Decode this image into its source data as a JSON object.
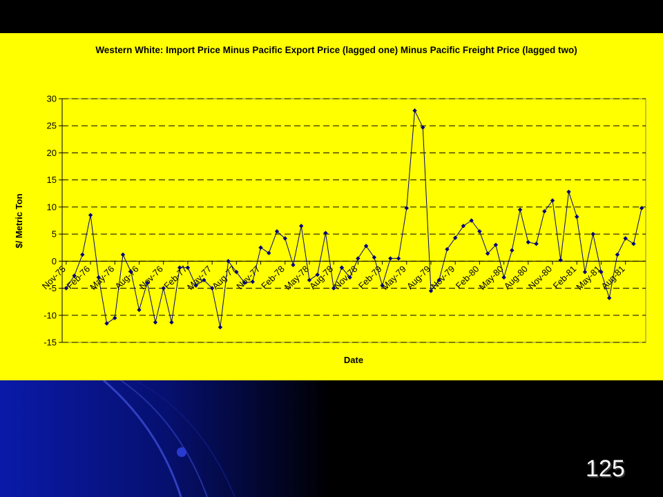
{
  "chart_data": {
    "type": "line",
    "title": "Western White: Import Price Minus Pacific Export Price (lagged one) Minus Pacific Freight Price (lagged two)",
    "x_label": "Date",
    "y_label": "$/ Metric Ton",
    "categories": [
      "Nov-75",
      null,
      null,
      "Feb-76",
      null,
      null,
      "May-76",
      null,
      null,
      "Aug-76",
      null,
      null,
      "Nov-76",
      null,
      null,
      "Feb-77",
      null,
      null,
      "May-77",
      null,
      null,
      "Aug-77",
      null,
      null,
      "Nov-77",
      null,
      null,
      "Feb-78",
      null,
      null,
      "May-78",
      null,
      null,
      "Aug-78",
      null,
      null,
      "Nov-78",
      null,
      null,
      "Feb-79",
      null,
      null,
      "May-79",
      null,
      null,
      "Aug-79",
      null,
      null,
      "Nov-79",
      null,
      null,
      "Feb-80",
      null,
      null,
      "May-80",
      null,
      null,
      "Aug-80",
      null,
      null,
      "Nov-80",
      null,
      null,
      "Feb-81",
      null,
      null,
      "May-81",
      null,
      null,
      "Aug-81",
      null,
      null
    ],
    "values": [
      -5,
      -2.7,
      1.2,
      8.5,
      -3,
      -11.5,
      -10.5,
      1.2,
      -2,
      -9,
      -4,
      -11.3,
      -5,
      -11.3,
      -1.2,
      -1.2,
      -4.5,
      -3.5,
      -5,
      -12.2,
      0,
      -2,
      -4,
      -3.8,
      2.5,
      1.5,
      5.5,
      4.2,
      -0.7,
      6.5,
      -3.5,
      -2.5,
      5.2,
      -5,
      -1.2,
      -3,
      0.5,
      2.8,
      0.7,
      -4.5,
      0.5,
      0.5,
      9.8,
      27.8,
      24.7,
      -5.5,
      -3.5,
      2.2,
      4.3,
      6.5,
      7.5,
      5.5,
      1.4,
      3,
      -3,
      2,
      9.5,
      3.5,
      3.2,
      9.2,
      11.2,
      0.2,
      12.8,
      8.2,
      -2,
      5,
      -2,
      -6.8,
      1.2,
      4.2,
      3.2,
      9.8
    ],
    "color": "#000080",
    "ylim": [
      -15,
      30
    ],
    "yticks": [
      -15,
      -10,
      -5,
      0,
      5,
      10,
      15,
      20,
      25,
      30
    ],
    "grid": true
  },
  "slide_number": "125"
}
